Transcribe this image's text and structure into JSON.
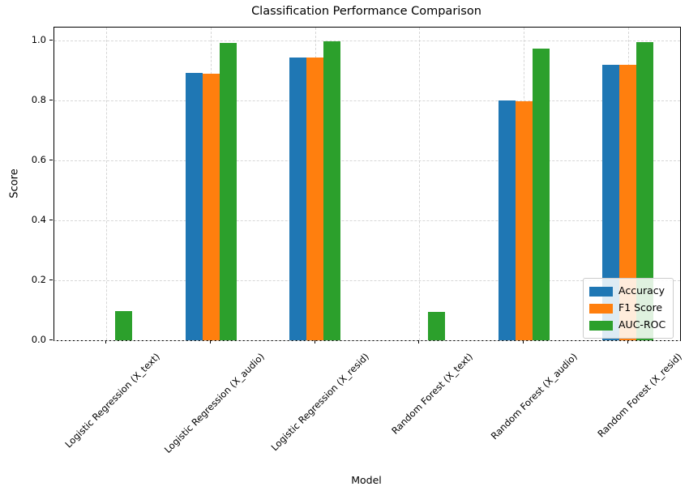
{
  "chart_data": {
    "type": "bar",
    "title": "Classification Performance Comparison",
    "xlabel": "Model",
    "ylabel": "Score",
    "categories": [
      "Logistic Regression (X_text)",
      "Logistic Regression (X_audio)",
      "Logistic Regression (X_resid)",
      "Random Forest (X_text)",
      "Random Forest (X_audio)",
      "Random Forest (X_resid)"
    ],
    "series": [
      {
        "name": "Accuracy",
        "color": "#1f77b4",
        "values": [
          0.0,
          0.89,
          0.943,
          0.0,
          0.799,
          0.918
        ]
      },
      {
        "name": "F1 Score",
        "color": "#ff7f0e",
        "values": [
          0.0,
          0.888,
          0.942,
          0.0,
          0.795,
          0.918
        ]
      },
      {
        "name": "AUC-ROC",
        "color": "#2ca02c",
        "values": [
          0.098,
          0.99,
          0.997,
          0.094,
          0.971,
          0.994
        ]
      }
    ],
    "ylim": [
      0,
      1.042
    ],
    "yticks": [
      "0.0",
      "0.2",
      "0.4",
      "0.6",
      "0.8",
      "1.0"
    ],
    "grid": true,
    "grid_style": "dashed",
    "legend_position": "lower right",
    "background": "#ffffff",
    "frame_color": "#000000"
  }
}
